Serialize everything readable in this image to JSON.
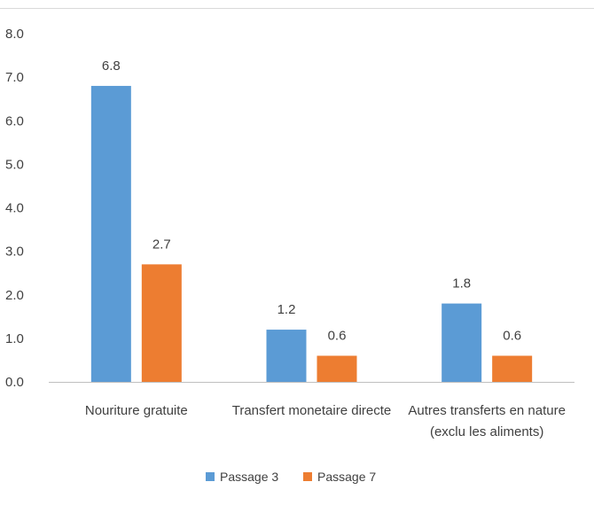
{
  "colors": {
    "passage3": "#5B9BD5",
    "passage7": "#ED7D31",
    "text": "#404040",
    "axis": "#bfbfbf"
  },
  "chart_data": {
    "type": "bar",
    "categories": [
      [
        "Nouriture gratuite"
      ],
      [
        "Transfert monetaire directe"
      ],
      [
        "Autres transferts en nature",
        "(exclu les aliments)"
      ]
    ],
    "series": [
      {
        "name": "Passage 3",
        "values": [
          6.8,
          1.2,
          1.8
        ],
        "labels": [
          "6.8",
          "1.2",
          "1.8"
        ],
        "color": "#5B9BD5"
      },
      {
        "name": "Passage 7",
        "values": [
          2.7,
          0.6,
          0.6
        ],
        "labels": [
          "2.7",
          "0.6",
          "0.6"
        ],
        "color": "#ED7D31"
      }
    ],
    "ylim": [
      0,
      8
    ],
    "yticks": [
      "0.0",
      "1.0",
      "2.0",
      "3.0",
      "4.0",
      "5.0",
      "6.0",
      "7.0",
      "8.0"
    ],
    "grid": false,
    "legend": "bottom-center",
    "title": "",
    "xlabel": "",
    "ylabel": ""
  }
}
